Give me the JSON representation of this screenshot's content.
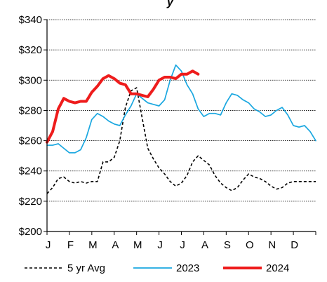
{
  "chart_data": {
    "type": "line",
    "title_fragment": "y",
    "xlabel": "",
    "ylabel": "",
    "x_labels": [
      "J",
      "F",
      "M",
      "A",
      "M",
      "J",
      "J",
      "A",
      "S",
      "O",
      "N",
      "D"
    ],
    "x_range": [
      0,
      12
    ],
    "ylim": [
      200,
      340
    ],
    "y_ticks": [
      200,
      220,
      240,
      260,
      280,
      300,
      320,
      340
    ],
    "y_tick_labels": [
      "$200",
      "$220",
      "$240",
      "$260",
      "$280",
      "$300",
      "$320",
      "$340"
    ],
    "grid": "horizontal-dotted",
    "legend_position": "bottom",
    "series": [
      {
        "name": "5 yr Avg",
        "color": "#000000",
        "style": "dashed",
        "x": [
          0.0,
          0.25,
          0.5,
          0.75,
          1.0,
          1.25,
          1.5,
          1.75,
          2.0,
          2.25,
          2.5,
          2.75,
          3.0,
          3.25,
          3.5,
          3.75,
          4.0,
          4.25,
          4.5,
          4.75,
          5.0,
          5.25,
          5.5,
          5.75,
          6.0,
          6.25,
          6.5,
          6.75,
          7.0,
          7.25,
          7.5,
          7.75,
          8.0,
          8.25,
          8.5,
          8.75,
          9.0,
          9.25,
          9.5,
          9.75,
          10.0,
          10.25,
          10.5,
          10.75,
          11.0,
          11.25,
          11.5,
          11.75,
          12.0
        ],
        "values": [
          225,
          229,
          235,
          236,
          233,
          232,
          233,
          232,
          233,
          233,
          246,
          246,
          249,
          260,
          282,
          293,
          295,
          275,
          255,
          248,
          242,
          238,
          233,
          230,
          232,
          237,
          246,
          250,
          247,
          244,
          237,
          232,
          229,
          227,
          229,
          234,
          238,
          236,
          235,
          233,
          230,
          228,
          229,
          232,
          233,
          233,
          233,
          233,
          233
        ]
      },
      {
        "name": "2023",
        "color": "#1aa7e0",
        "style": "solid",
        "x": [
          0.0,
          0.25,
          0.5,
          0.75,
          1.0,
          1.25,
          1.5,
          1.75,
          2.0,
          2.25,
          2.5,
          2.75,
          3.0,
          3.25,
          3.5,
          3.75,
          4.0,
          4.25,
          4.5,
          4.75,
          5.0,
          5.25,
          5.5,
          5.75,
          6.0,
          6.25,
          6.5,
          6.75,
          7.0,
          7.25,
          7.5,
          7.75,
          8.0,
          8.25,
          8.5,
          8.75,
          9.0,
          9.25,
          9.5,
          9.75,
          10.0,
          10.25,
          10.5,
          10.75,
          11.0,
          11.25,
          11.5,
          11.75,
          12.0
        ],
        "values": [
          257,
          257,
          258,
          255,
          252,
          252,
          254,
          262,
          274,
          278,
          276,
          273,
          271,
          270,
          277,
          283,
          291,
          288,
          285,
          284,
          283,
          287,
          300,
          310,
          306,
          297,
          291,
          281,
          276,
          278,
          278,
          277,
          285,
          291,
          290,
          287,
          285,
          281,
          279,
          276,
          277,
          280,
          282,
          277,
          270,
          269,
          270,
          266,
          260
        ]
      },
      {
        "name": "2024",
        "color": "#ee1c1c",
        "style": "solid-thick",
        "x": [
          0.0,
          0.25,
          0.5,
          0.75,
          1.0,
          1.25,
          1.5,
          1.75,
          2.0,
          2.25,
          2.5,
          2.75,
          3.0,
          3.25,
          3.5,
          3.75,
          4.0,
          4.25,
          4.5,
          4.75,
          5.0,
          5.25,
          5.5,
          5.75,
          6.0,
          6.25,
          6.5,
          6.75
        ],
        "values": [
          259,
          266,
          281,
          288,
          286,
          285,
          286,
          286,
          292,
          296,
          301,
          303,
          301,
          298,
          297,
          291,
          291,
          290,
          289,
          294,
          300,
          302,
          302,
          301,
          304,
          304,
          306,
          304
        ]
      }
    ]
  }
}
